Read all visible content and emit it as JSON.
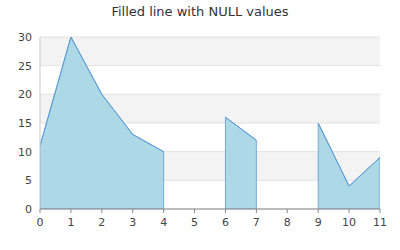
{
  "chart_data": {
    "type": "area",
    "title": "Filled line with NULL values",
    "x": [
      0,
      1,
      2,
      3,
      4,
      5,
      6,
      7,
      8,
      9,
      10,
      11
    ],
    "values": [
      11,
      30,
      20,
      13,
      10,
      null,
      16,
      12,
      null,
      15,
      4,
      9
    ],
    "color": "#add8e6",
    "xlim": [
      0,
      11
    ],
    "xticks": [
      0,
      1,
      2,
      3,
      4,
      5,
      6,
      7,
      8,
      9,
      10,
      11
    ],
    "ylim": [
      0,
      30
    ],
    "yticks": [
      0,
      5,
      10,
      15,
      20,
      25,
      30
    ],
    "grid": true
  }
}
